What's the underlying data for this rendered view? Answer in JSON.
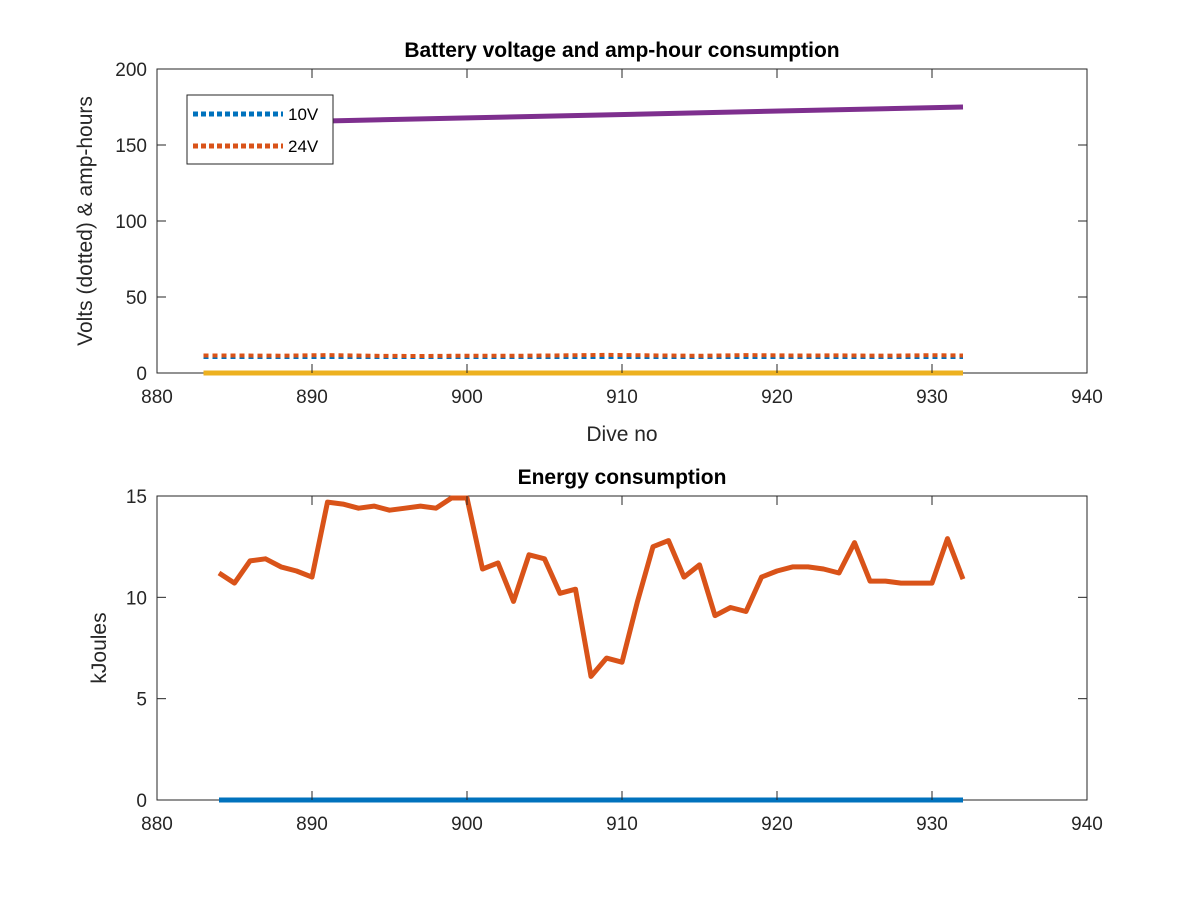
{
  "chart_data": [
    {
      "type": "line",
      "title": "Battery voltage and amp-hour consumption",
      "xlabel": "Dive no",
      "ylabel": "Volts (dotted) & amp-hours",
      "xlim": [
        880,
        940
      ],
      "ylim": [
        0,
        200
      ],
      "xticks": [
        880,
        890,
        900,
        910,
        920,
        930,
        940
      ],
      "yticks": [
        0,
        50,
        100,
        150,
        200
      ],
      "grid": false,
      "legend": {
        "placement": "top-left",
        "entries": [
          "10V",
          "24V"
        ]
      },
      "series": [
        {
          "name": "10V",
          "color": "#0072BD",
          "style": "dotted",
          "x": [
            883,
            932
          ],
          "y": [
            10.5,
            10.5
          ]
        },
        {
          "name": "24V",
          "color": "#D95319",
          "style": "dotted",
          "x": [
            883,
            885,
            888,
            891,
            894,
            897,
            900,
            903,
            906,
            909,
            912,
            915,
            918,
            921,
            924,
            927,
            930,
            932
          ],
          "y": [
            11.5,
            11.5,
            11.4,
            11.8,
            11.3,
            11.2,
            11.4,
            11.3,
            11.6,
            11.9,
            11.6,
            11.3,
            11.8,
            11.5,
            11.6,
            11.4,
            11.7,
            11.5
          ]
        },
        {
          "color": "#EDB120",
          "style": "solid",
          "x": [
            883,
            932
          ],
          "y": [
            0,
            0
          ]
        },
        {
          "color": "#7E2F8E",
          "style": "solid",
          "x": [
            883,
            932
          ],
          "y": [
            164,
            175
          ]
        }
      ]
    },
    {
      "type": "line",
      "title": "Energy consumption",
      "xlabel": "",
      "ylabel": "kJoules",
      "xlim": [
        880,
        940
      ],
      "ylim": [
        0,
        15
      ],
      "xticks": [
        880,
        890,
        900,
        910,
        920,
        930,
        940
      ],
      "yticks": [
        0,
        5,
        10,
        15
      ],
      "grid": false,
      "series": [
        {
          "color": "#0072BD",
          "style": "solid",
          "x": [
            884,
            932
          ],
          "y": [
            0,
            0
          ]
        },
        {
          "color": "#D95319",
          "style": "solid",
          "x": [
            884,
            885,
            886,
            887,
            888,
            889,
            890,
            891,
            892,
            893,
            894,
            895,
            896,
            897,
            898,
            899,
            900,
            901,
            902,
            903,
            904,
            905,
            906,
            907,
            908,
            909,
            910,
            911,
            912,
            913,
            914,
            915,
            916,
            917,
            918,
            919,
            920,
            921,
            922,
            923,
            924,
            925,
            926,
            927,
            928,
            929,
            930,
            931,
            932
          ],
          "y": [
            11.2,
            10.7,
            11.8,
            11.9,
            11.5,
            11.3,
            11.0,
            14.7,
            14.6,
            14.4,
            14.5,
            14.3,
            14.4,
            14.5,
            14.4,
            14.9,
            14.9,
            11.4,
            11.7,
            9.8,
            12.1,
            11.9,
            10.2,
            10.4,
            6.1,
            7.0,
            6.8,
            9.8,
            12.5,
            12.8,
            11.0,
            11.6,
            9.1,
            9.5,
            9.3,
            11.0,
            11.3,
            11.5,
            11.5,
            11.4,
            11.2,
            12.7,
            10.8,
            10.8,
            10.7,
            10.7,
            10.7,
            12.9,
            10.9
          ]
        }
      ]
    }
  ]
}
